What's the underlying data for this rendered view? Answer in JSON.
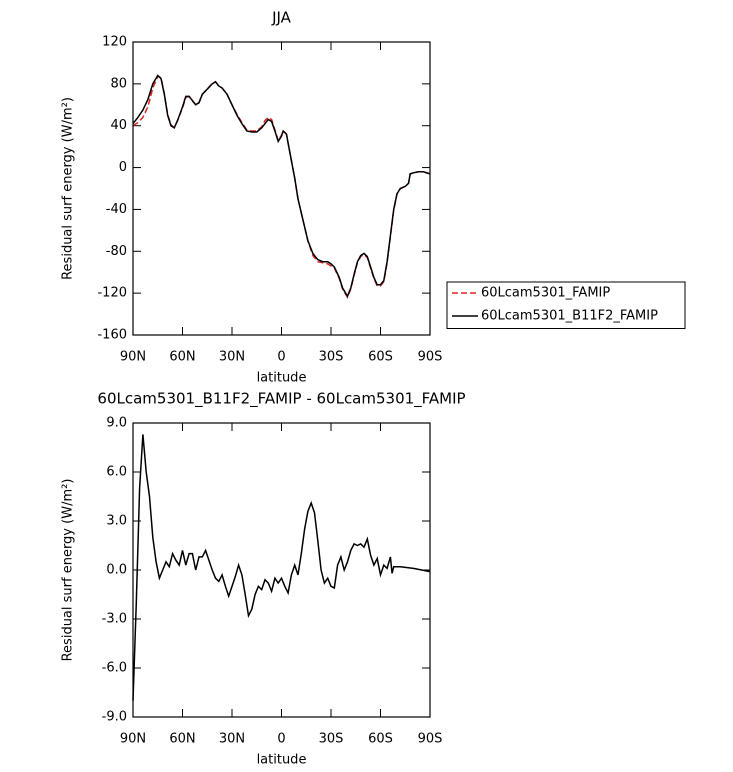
{
  "chart_data": [
    {
      "type": "line",
      "title": "JJA",
      "xlabel": "latitude",
      "ylabel": "Residual surf energy (W/m²)",
      "x": [
        90,
        87,
        84,
        81,
        78,
        75,
        73,
        71,
        69,
        67,
        65,
        63,
        60,
        58,
        56,
        54,
        52,
        50,
        48,
        45,
        42,
        40,
        38,
        36,
        33,
        30,
        27,
        24,
        21,
        18,
        15,
        12,
        10,
        8,
        6,
        4,
        2,
        0,
        -1,
        -3,
        -5,
        -8,
        -10,
        -13,
        -16,
        -19,
        -22,
        -25,
        -28,
        -30,
        -32,
        -35,
        -37,
        -40,
        -42,
        -44,
        -46,
        -48,
        -50,
        -52,
        -54,
        -56,
        -58,
        -60,
        -62,
        -64,
        -66,
        -68,
        -70,
        -72,
        -75,
        -77,
        -78,
        -80,
        -83,
        -86,
        -90
      ],
      "series": [
        {
          "name": "60Lcam5301_FAMIP",
          "color": "#e02020",
          "linestyle": "dashed",
          "values": [
            40,
            43,
            48,
            58,
            76,
            87,
            86,
            70,
            51,
            41,
            38,
            45,
            57,
            67,
            68,
            64,
            60,
            62,
            70,
            75,
            80,
            82,
            78,
            76,
            70,
            60,
            51,
            43,
            36,
            35,
            35,
            39,
            45,
            48,
            46,
            36,
            26,
            31,
            35,
            32,
            15,
            -10,
            -30,
            -50,
            -70,
            -84,
            -90,
            -91,
            -92,
            -94,
            -96,
            -106,
            -116,
            -124,
            -116,
            -103,
            -91,
            -85,
            -83,
            -86,
            -96,
            -106,
            -113,
            -113,
            -109,
            -91,
            -66,
            -41,
            -25,
            -20,
            -18,
            -15,
            -6,
            -5,
            -4,
            -4,
            -6
          ]
        },
        {
          "name": "60Lcam5301_B11F2_FAMIP",
          "color": "#000000",
          "linestyle": "solid",
          "values": [
            42,
            48,
            55,
            65,
            80,
            88,
            85,
            70,
            50,
            40,
            38,
            45,
            58,
            68,
            68,
            64,
            60,
            62,
            70,
            75,
            80,
            82,
            78,
            76,
            70,
            60,
            50,
            42,
            35,
            34,
            34,
            38,
            42,
            46,
            44,
            35,
            25,
            30,
            35,
            32,
            15,
            -10,
            -30,
            -50,
            -70,
            -82,
            -88,
            -90,
            -90,
            -92,
            -95,
            -105,
            -115,
            -123,
            -115,
            -102,
            -90,
            -84,
            -82,
            -85,
            -95,
            -105,
            -112,
            -112,
            -108,
            -90,
            -65,
            -40,
            -25,
            -20,
            -18,
            -15,
            -6,
            -5,
            -4,
            -4,
            -6
          ]
        }
      ],
      "xlim": [
        90,
        -90
      ],
      "xticks": [
        {
          "value": 90,
          "label": "90N"
        },
        {
          "value": 60,
          "label": "60N"
        },
        {
          "value": 30,
          "label": "30N"
        },
        0,
        {
          "value": -30,
          "label": "30S"
        },
        {
          "value": -60,
          "label": "60S"
        },
        {
          "value": -90,
          "label": "90S"
        }
      ],
      "ylim": [
        -160,
        120
      ],
      "yticks": [
        120,
        80,
        40,
        0,
        -40,
        -80,
        -120,
        -160
      ],
      "legend": "right"
    },
    {
      "type": "line",
      "title": "60Lcam5301_B11F2_FAMIP - 60Lcam5301_FAMIP",
      "xlabel": "latitude",
      "ylabel": "Residual surf energy (W/m²)",
      "x": [
        90,
        88,
        86,
        84,
        82,
        80,
        78,
        76,
        74,
        72,
        70,
        68,
        66,
        64,
        62,
        60,
        58,
        56,
        54,
        52,
        50,
        48,
        46,
        44,
        42,
        40,
        38,
        36,
        34,
        32,
        30,
        28,
        26,
        24,
        22,
        20,
        18,
        16,
        14,
        12,
        10,
        8,
        6,
        4,
        2,
        0,
        -2,
        -4,
        -6,
        -8,
        -10,
        -12,
        -14,
        -16,
        -18,
        -20,
        -22,
        -24,
        -26,
        -28,
        -30,
        -32,
        -34,
        -36,
        -38,
        -40,
        -42,
        -44,
        -46,
        -48,
        -50,
        -52,
        -54,
        -56,
        -58,
        -60,
        -62,
        -64,
        -66,
        -67,
        -68,
        -72,
        -80,
        -90
      ],
      "series": [
        {
          "color": "#000000",
          "linestyle": "solid",
          "values": [
            -8,
            -2,
            5,
            8.3,
            6,
            4.5,
            2,
            0.5,
            -0.5,
            0,
            0.5,
            0.2,
            1,
            0.6,
            0.3,
            1.2,
            0.3,
            1,
            1,
            0,
            0.8,
            0.8,
            1.2,
            0.6,
            0,
            -0.5,
            -0.7,
            -0.3,
            -1,
            -1.6,
            -1,
            -0.4,
            0.3,
            -0.3,
            -1.5,
            -2.8,
            -2.4,
            -1.5,
            -1,
            -1.2,
            -0.6,
            -0.8,
            -1.3,
            -0.5,
            -0.8,
            -0.5,
            -1,
            -1.4,
            -0.3,
            0.3,
            -0.3,
            1,
            2.5,
            3.6,
            4.1,
            3.5,
            1.8,
            0,
            -0.8,
            -0.5,
            -1,
            -1.1,
            0.3,
            0.8,
            0,
            0.5,
            1.2,
            1.6,
            1.5,
            1.6,
            1.4,
            1.9,
            0.9,
            0.3,
            0.7,
            -0.3,
            0.3,
            0.1,
            0.8,
            -0.2,
            0.2,
            0.2,
            0.1,
            -0.1
          ]
        }
      ],
      "xlim": [
        90,
        -90
      ],
      "xticks": [
        {
          "value": 90,
          "label": "90N"
        },
        {
          "value": 60,
          "label": "60N"
        },
        {
          "value": 30,
          "label": "30N"
        },
        0,
        {
          "value": -30,
          "label": "30S"
        },
        {
          "value": -60,
          "label": "60S"
        },
        {
          "value": -90,
          "label": "90S"
        }
      ],
      "ylim": [
        -9,
        9
      ],
      "yticks": [
        {
          "value": 9,
          "label": "9.0"
        },
        {
          "value": 6,
          "label": "6.0"
        },
        {
          "value": 3,
          "label": "3.0"
        },
        {
          "value": 0,
          "label": "0.0"
        },
        {
          "value": -3,
          "label": "-3.0"
        },
        {
          "value": -6,
          "label": "-6.0"
        },
        {
          "value": -9,
          "label": "-9.0"
        }
      ]
    }
  ]
}
